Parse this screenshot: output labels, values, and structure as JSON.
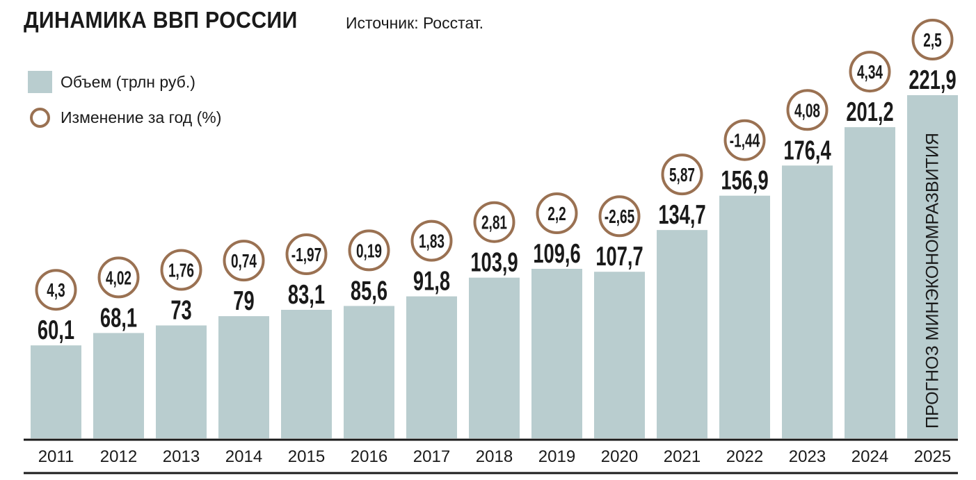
{
  "header": {
    "title": "ДИНАМИКА ВВП РОССИИ",
    "source": "Источник: Росстат."
  },
  "legend": {
    "volume_label": "Объем (трлн руб.)",
    "change_label": "Изменение за год (%)"
  },
  "colors": {
    "bar": "#b9cdcf",
    "circle_border": "#9a7152",
    "axis": "#1a1a1a"
  },
  "chart_data": {
    "type": "bar",
    "title": "ДИНАМИКА ВВП РОССИИ",
    "categories": [
      "2011",
      "2012",
      "2013",
      "2014",
      "2015",
      "2016",
      "2017",
      "2018",
      "2019",
      "2020",
      "2021",
      "2022",
      "2023",
      "2024",
      "2025"
    ],
    "series": [
      {
        "name": "Объем (трлн руб.)",
        "values": [
          60.1,
          68.1,
          73,
          79,
          83.1,
          85.6,
          91.8,
          103.9,
          109.6,
          107.7,
          134.7,
          156.9,
          176.4,
          201.2,
          221.9
        ],
        "labels": [
          "60,1",
          "68,1",
          "73",
          "79",
          "83,1",
          "85,6",
          "91,8",
          "103,9",
          "109,6",
          "107,7",
          "134,7",
          "156,9",
          "176,4",
          "201,2",
          "221,9"
        ]
      },
      {
        "name": "Изменение за год (%)",
        "values": [
          4.3,
          4.02,
          1.76,
          0.74,
          -1.97,
          0.19,
          1.83,
          2.81,
          2.2,
          -2.65,
          5.87,
          -1.44,
          4.08,
          4.34,
          2.5
        ],
        "labels": [
          "4,3",
          "4,02",
          "1,76",
          "0,74",
          "-1,97",
          "0,19",
          "1,83",
          "2,81",
          "2,2",
          "-2,65",
          "5,87",
          "-1,44",
          "4,08",
          "4,34",
          "2,5"
        ]
      }
    ],
    "forecast_note": "ПРОГНОЗ МИНЭКОНОМРАЗВИТИЯ",
    "ylim": [
      0,
      221.9
    ],
    "grid": false,
    "legend_position": "top-left"
  }
}
